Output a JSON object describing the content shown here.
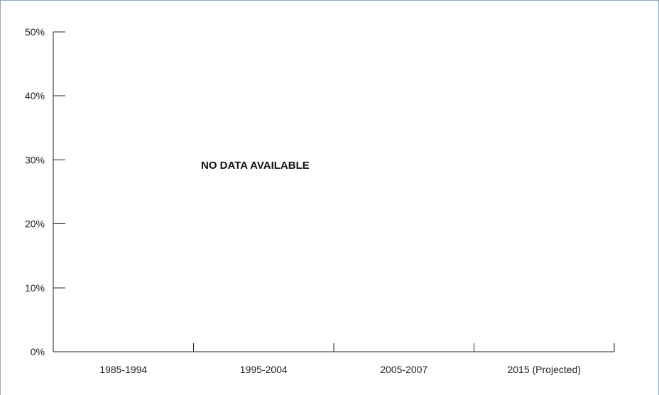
{
  "chart_data": {
    "type": "bar",
    "title": "",
    "xlabel": "",
    "ylabel": "",
    "categories": [
      "1985-1994",
      "1995-2004",
      "2005-2007",
      "2015 (Projected)"
    ],
    "series": [],
    "ylim": [
      0,
      50
    ],
    "yticks": [
      0,
      10,
      20,
      30,
      40,
      50
    ],
    "ytick_format": "%",
    "grid": false,
    "legend": "none",
    "annotation": "NO DATA AVAILABLE",
    "colors": {
      "frame": "#8fa6c8",
      "title": "#1f5fae",
      "axis": "#222222"
    }
  }
}
